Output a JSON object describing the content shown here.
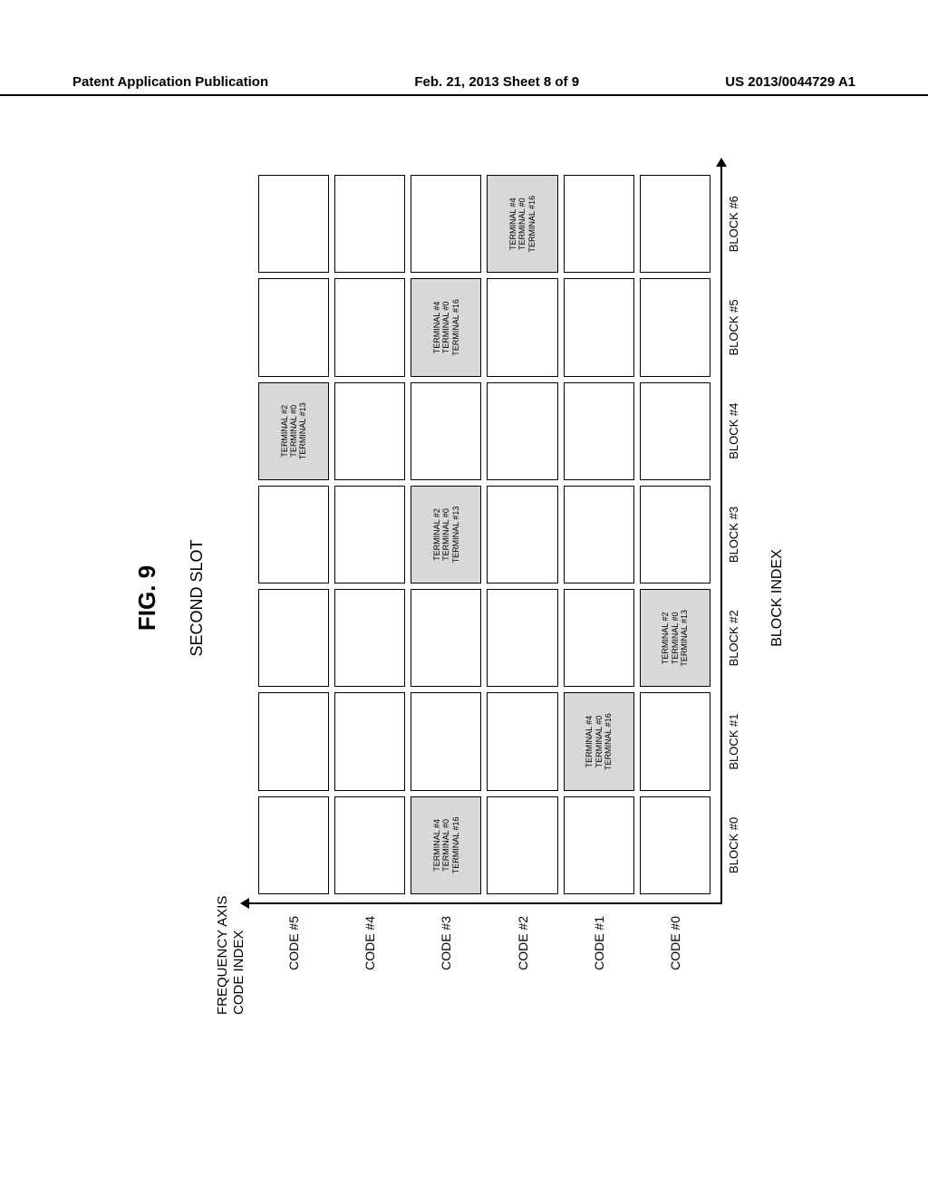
{
  "header": {
    "left": "Patent Application Publication",
    "center": "Feb. 21, 2013  Sheet 8 of 9",
    "right": "US 2013/0044729 A1"
  },
  "figure": {
    "title": "FIG.  9",
    "slot_title": "SECOND SLOT",
    "yaxis_title": "FREQUENCY AXIS\nCODE INDEX",
    "xaxis_title": "BLOCK INDEX",
    "rows": 6,
    "cols": 7,
    "y_labels": [
      "CODE #5",
      "CODE #4",
      "CODE #3",
      "CODE #2",
      "CODE #1",
      "CODE #0"
    ],
    "x_labels": [
      "BLOCK #0",
      "BLOCK #1",
      "BLOCK #2",
      "BLOCK #3",
      "BLOCK #4",
      "BLOCK #5",
      "BLOCK #6"
    ],
    "group_a": [
      "TERMINAL #4",
      "TERMINAL #0",
      "TERMINAL #16"
    ],
    "group_b": [
      "TERMINAL #2",
      "TERMINAL #0",
      "TERMINAL #13"
    ],
    "fills": {
      "0,4": "b",
      "2,0": "a",
      "2,3": "b",
      "2,5": "a",
      "3,6": "a",
      "4,1": "a",
      "5,2": "b"
    },
    "colors": {
      "cell_border": "#000000",
      "cell_fill": "#d8d8d8",
      "background": "#ffffff",
      "text": "#000000",
      "axis": "#000000"
    },
    "fontsizes": {
      "fig_title": 26,
      "slot_title": 18,
      "axis_title": 16,
      "tick_label": 14,
      "cell_text": 9
    }
  }
}
